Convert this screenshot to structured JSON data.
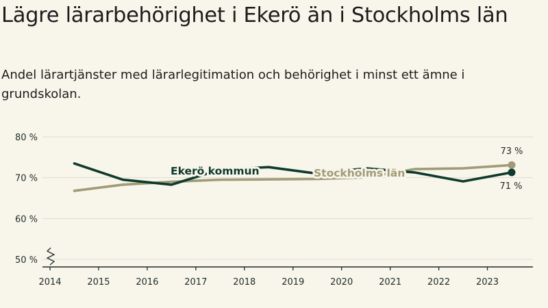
{
  "title": "Lägre lärarbehörighet i Ekerö än i Stockholms län",
  "subtitle": "Andel lärartjänster med lärarlegitimation och behörighet i minst ett ämne i grundskolan.",
  "colors": {
    "background": "#f8f5eb",
    "ekero": "#0e3a2d",
    "stockholm": "#a09b76",
    "grid": "#dedbd2",
    "axis": "#1e2b28"
  },
  "chart_data": {
    "type": "line",
    "x_ticks": [
      "2014",
      "2015",
      "2016",
      "2017",
      "2018",
      "2019",
      "2020",
      "2021",
      "2022",
      "2023"
    ],
    "y_ticks": [
      "50 %",
      "60 %",
      "70 %",
      "80 %"
    ],
    "ylim": [
      50,
      80
    ],
    "y_axis_break": true,
    "grid": true,
    "series": [
      {
        "name": "Ekerö kommun",
        "x": [
          2014.5,
          2015.5,
          2016.5,
          2017.5,
          2018.5,
          2019.5,
          2020.5,
          2021.5,
          2022.5,
          2023.5
        ],
        "values": [
          73.5,
          69.5,
          68.3,
          72.0,
          72.6,
          71.0,
          72.3,
          71.3,
          69.1,
          71.3
        ],
        "end_label": "71 %"
      },
      {
        "name": "Stockholms län",
        "x": [
          2014.5,
          2015.5,
          2016.5,
          2017.5,
          2018.5,
          2019.5,
          2020.5,
          2021.5,
          2022.5,
          2023.5
        ],
        "values": [
          66.8,
          68.3,
          69.0,
          69.5,
          69.6,
          69.7,
          70.1,
          72.1,
          72.3,
          73.1
        ],
        "end_label": "73 %"
      }
    ]
  }
}
